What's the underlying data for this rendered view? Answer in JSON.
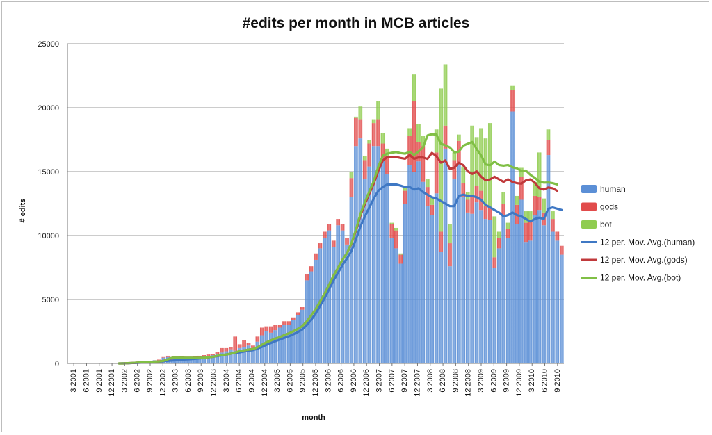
{
  "chart_data": {
    "type": "bar",
    "stacked": true,
    "title": "#edits per month in MCB articles",
    "xlabel": "month",
    "ylabel": "# edits",
    "ylim": [
      0,
      25000
    ],
    "yticks": [
      0,
      5000,
      10000,
      15000,
      20000,
      25000
    ],
    "grid": true,
    "legend_position": "right",
    "x_tick_labels": [
      "3 2001",
      "6 2001",
      "9 2001",
      "12 2001",
      "3 2002",
      "6 2002",
      "9 2002",
      "12 2002",
      "3 2003",
      "6 2003",
      "9 2003",
      "12 2003",
      "3 2004",
      "6 2004",
      "9 2004",
      "12 2004",
      "3 2005",
      "6 2005",
      "9 2005",
      "12 2005",
      "3 2006",
      "6 2006",
      "9 2006",
      "12 2006",
      "3 2007",
      "6 2007",
      "9 2007",
      "12 2007",
      "3 2008",
      "6 2008",
      "9 2008",
      "12 2008",
      "3 2009",
      "6 2009",
      "9 2009",
      "12 2009",
      "3 2010",
      "6 2010",
      "9 2010"
    ],
    "series": [
      {
        "name": "human",
        "kind": "bar",
        "color": "#5b8fd6",
        "values": [
          0,
          0,
          0,
          0,
          0,
          0,
          0,
          0,
          0,
          0,
          0,
          0,
          100,
          50,
          0,
          50,
          100,
          150,
          200,
          250,
          250,
          450,
          500,
          200,
          250,
          450,
          350,
          400,
          450,
          500,
          550,
          600,
          650,
          750,
          850,
          950,
          1100,
          1000,
          1200,
          1300,
          1400,
          1200,
          1700,
          2200,
          2500,
          2400,
          2600,
          2800,
          3000,
          3000,
          3400,
          3800,
          4200,
          6500,
          7200,
          8100,
          9000,
          9800,
          10400,
          9100,
          10800,
          10400,
          9300,
          13000,
          17000,
          17600,
          14400,
          15400,
          17000,
          17000,
          16000,
          14800,
          9800,
          9000,
          7800,
          12500,
          15500,
          15000,
          15800,
          14200,
          12300,
          11600,
          13300,
          8700,
          16800,
          7600,
          14400,
          15700,
          13000,
          11800,
          11700,
          12600,
          12000,
          11300,
          11200,
          7500,
          9000,
          11500,
          9800,
          19700,
          10900,
          12800,
          9500,
          9600,
          11600,
          12000,
          10800,
          16300,
          10300,
          9600,
          8500
        ]
      },
      {
        "name": "gods",
        "kind": "bar",
        "color": "#e14b4b",
        "values": [
          0,
          0,
          0,
          0,
          0,
          0,
          0,
          0,
          0,
          0,
          0,
          0,
          0,
          0,
          0,
          0,
          0,
          0,
          0,
          0,
          50,
          50,
          100,
          300,
          250,
          100,
          100,
          100,
          100,
          100,
          100,
          100,
          100,
          150,
          350,
          250,
          200,
          1100,
          300,
          500,
          200,
          200,
          400,
          600,
          400,
          500,
          400,
          200,
          300,
          300,
          200,
          200,
          200,
          500,
          400,
          500,
          400,
          500,
          500,
          500,
          500,
          500,
          500,
          1500,
          2200,
          1500,
          1500,
          1800,
          1800,
          2100,
          1200,
          1400,
          1100,
          1400,
          700,
          1000,
          2300,
          5500,
          1500,
          2800,
          1500,
          800,
          3200,
          1600,
          1800,
          1800,
          1500,
          1700,
          1100,
          1000,
          1300,
          1300,
          1500,
          1000,
          1000,
          800,
          800,
          1000,
          700,
          1700,
          1500,
          1800,
          1500,
          1600,
          1500,
          1000,
          1000,
          1200,
          1000,
          700,
          700
        ]
      },
      {
        "name": "bot",
        "kind": "bar",
        "color": "#8fcc4f",
        "values": [
          0,
          0,
          0,
          0,
          0,
          0,
          0,
          0,
          0,
          0,
          0,
          0,
          0,
          0,
          0,
          0,
          0,
          0,
          0,
          0,
          0,
          0,
          0,
          0,
          0,
          0,
          0,
          0,
          0,
          0,
          0,
          0,
          0,
          0,
          0,
          0,
          0,
          0,
          0,
          0,
          0,
          0,
          0,
          0,
          0,
          0,
          0,
          0,
          0,
          0,
          0,
          0,
          0,
          0,
          0,
          0,
          0,
          0,
          0,
          0,
          0,
          0,
          0,
          500,
          100,
          1000,
          300,
          300,
          300,
          1400,
          800,
          600,
          100,
          200,
          100,
          200,
          600,
          2100,
          1400,
          800,
          600,
          600,
          1800,
          11200,
          4800,
          1500,
          600,
          500,
          1300,
          600,
          5600,
          3800,
          4900,
          5300,
          6600,
          3200,
          500,
          900,
          500,
          300,
          700,
          700,
          900,
          700,
          1100,
          3500,
          1100,
          800,
          600
        ]
      },
      {
        "name": "12 per. Mov. Avg.(human)",
        "kind": "line",
        "color": "#3f78c4",
        "values": [
          null,
          null,
          null,
          null,
          null,
          null,
          null,
          null,
          null,
          null,
          null,
          0,
          0,
          10,
          30,
          40,
          60,
          70,
          90,
          110,
          130,
          170,
          200,
          230,
          260,
          290,
          310,
          330,
          360,
          390,
          420,
          470,
          520,
          570,
          630,
          700,
          770,
          820,
          860,
          930,
          1000,
          1040,
          1150,
          1300,
          1450,
          1600,
          1740,
          1870,
          2000,
          2120,
          2270,
          2450,
          2650,
          3000,
          3400,
          3900,
          4500,
          5100,
          5800,
          6500,
          7100,
          7700,
          8200,
          8800,
          9700,
          10700,
          11500,
          12200,
          12900,
          13500,
          13800,
          14000,
          14000,
          14000,
          13900,
          13800,
          13800,
          13600,
          13700,
          13400,
          13200,
          13000,
          12900,
          12700,
          12500,
          12300,
          12300,
          13100,
          13200,
          13100,
          13100,
          13000,
          12800,
          12400,
          12200,
          12000,
          11800,
          11500,
          11600,
          11800,
          11600,
          11500,
          11300,
          11100,
          11300,
          11400,
          11300,
          12100,
          12200,
          12100,
          12000
        ]
      },
      {
        "name": "12 per. Mov. Avg.(gods)",
        "kind": "line",
        "color": "#c0393b",
        "values": [
          null,
          null,
          null,
          null,
          null,
          null,
          null,
          null,
          null,
          null,
          null,
          0,
          0,
          20,
          40,
          60,
          80,
          100,
          120,
          140,
          160,
          200,
          330,
          450,
          450,
          450,
          440,
          440,
          440,
          440,
          450,
          480,
          520,
          590,
          650,
          700,
          760,
          860,
          960,
          1020,
          1080,
          1120,
          1270,
          1460,
          1650,
          1800,
          1950,
          2060,
          2220,
          2350,
          2510,
          2700,
          2920,
          3280,
          3750,
          4250,
          4850,
          5470,
          6160,
          6870,
          7490,
          8110,
          8620,
          9370,
          10380,
          11560,
          12470,
          13290,
          14070,
          15070,
          15870,
          16140,
          16140,
          16140,
          16070,
          16010,
          16300,
          16010,
          16110,
          16110,
          16000,
          16470,
          16210,
          15700,
          15880,
          15210,
          15310,
          15700,
          15500,
          15020,
          14820,
          15020,
          14610,
          14320,
          14400,
          14600,
          14400,
          14200,
          14400,
          14200,
          14100,
          14060,
          14320,
          14400,
          14130,
          13700,
          13600,
          13760,
          13700,
          13500
        ]
      },
      {
        "name": "12 per. Mov. Avg.(bot)",
        "kind": "line",
        "color": "#80bf45",
        "values": [
          null,
          null,
          null,
          null,
          null,
          null,
          null,
          null,
          null,
          null,
          null,
          0,
          0,
          20,
          40,
          60,
          80,
          100,
          120,
          140,
          160,
          200,
          330,
          450,
          450,
          450,
          440,
          440,
          440,
          440,
          450,
          480,
          520,
          590,
          650,
          700,
          760,
          860,
          960,
          1020,
          1080,
          1120,
          1270,
          1460,
          1650,
          1800,
          1950,
          2060,
          2220,
          2350,
          2510,
          2700,
          2920,
          3280,
          3750,
          4250,
          4850,
          5470,
          6160,
          6870,
          7490,
          8110,
          8620,
          9420,
          10460,
          11690,
          12620,
          13460,
          14270,
          15410,
          16250,
          16410,
          16480,
          16530,
          16450,
          16410,
          16560,
          16300,
          16570,
          16890,
          17830,
          17930,
          17900,
          17180,
          17060,
          16890,
          16510,
          16560,
          17030,
          17180,
          17320,
          16760,
          16260,
          15560,
          15500,
          15790,
          15520,
          15470,
          15520,
          15340,
          15260,
          15030,
          15080,
          14750,
          14510,
          14220,
          14140,
          14150,
          14100,
          14000
        ]
      }
    ]
  }
}
